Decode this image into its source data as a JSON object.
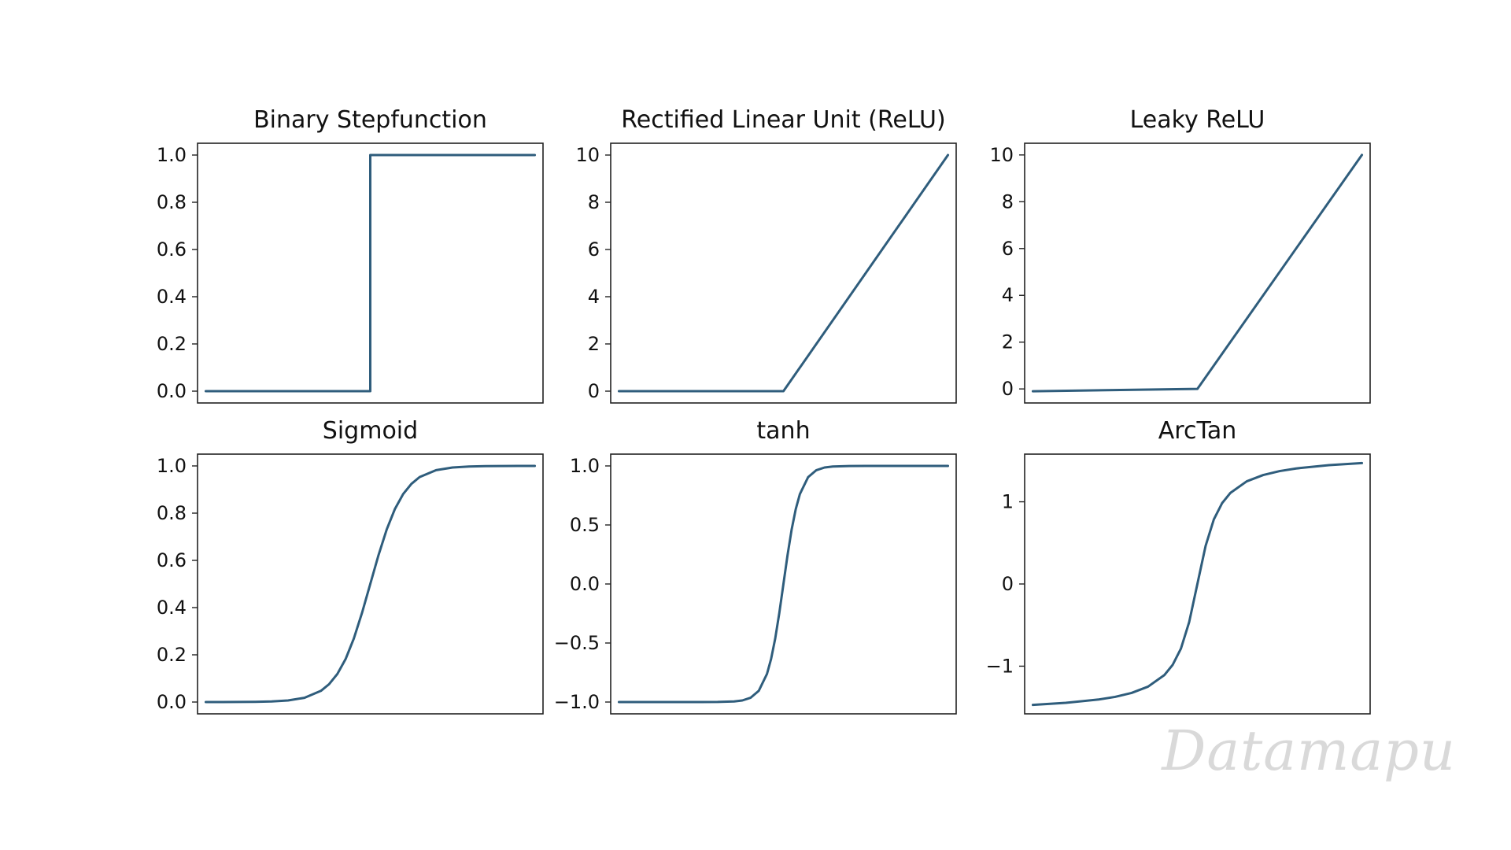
{
  "watermark": "Datamapu",
  "style": {
    "line_color": "#2f5d7c",
    "axis_color": "#222222",
    "text_color": "#111111"
  },
  "chart_data": [
    {
      "type": "line",
      "title": "Binary Stepfunction",
      "xlim": [
        -10.5,
        10.5
      ],
      "ylim": [
        -0.05,
        1.05
      ],
      "yticks": [
        0.0,
        0.2,
        0.4,
        0.6,
        0.8,
        1.0
      ],
      "ytick_labels": [
        "0.0",
        "0.2",
        "0.4",
        "0.6",
        "0.8",
        "1.0"
      ],
      "x": [
        -10,
        0,
        0,
        10
      ],
      "y": [
        0,
        0,
        1,
        1
      ]
    },
    {
      "type": "line",
      "title": "Rectified Linear Unit (ReLU)",
      "xlim": [
        -10.5,
        10.5
      ],
      "ylim": [
        -0.5,
        10.5
      ],
      "yticks": [
        0,
        2,
        4,
        6,
        8,
        10
      ],
      "ytick_labels": [
        "0",
        "2",
        "4",
        "6",
        "8",
        "10"
      ],
      "x": [
        -10,
        0,
        10
      ],
      "y": [
        0,
        0,
        10
      ]
    },
    {
      "type": "line",
      "title": "Leaky ReLU",
      "xlim": [
        -10.5,
        10.5
      ],
      "ylim": [
        -0.6,
        10.5
      ],
      "yticks": [
        0,
        2,
        4,
        6,
        8,
        10
      ],
      "ytick_labels": [
        "0",
        "2",
        "4",
        "6",
        "8",
        "10"
      ],
      "x": [
        -10,
        0,
        10
      ],
      "y": [
        -0.1,
        0,
        10
      ]
    },
    {
      "type": "line",
      "title": "Sigmoid",
      "xlim": [
        -10.5,
        10.5
      ],
      "ylim": [
        -0.05,
        1.05
      ],
      "yticks": [
        0.0,
        0.2,
        0.4,
        0.6,
        0.8,
        1.0
      ],
      "ytick_labels": [
        "0.0",
        "0.2",
        "0.4",
        "0.6",
        "0.8",
        "1.0"
      ],
      "x": [
        -10,
        -9,
        -8,
        -7,
        -6,
        -5,
        -4,
        -3,
        -2.5,
        -2,
        -1.5,
        -1,
        -0.5,
        0,
        0.5,
        1,
        1.5,
        2,
        2.5,
        3,
        4,
        5,
        6,
        7,
        8,
        9,
        10
      ],
      "y": [
        4.54e-05,
        0.000123,
        0.000335,
        0.000911,
        0.00247,
        0.00669,
        0.018,
        0.0474,
        0.0759,
        0.119,
        0.182,
        0.269,
        0.378,
        0.5,
        0.622,
        0.731,
        0.818,
        0.881,
        0.924,
        0.953,
        0.982,
        0.9933,
        0.9975,
        0.9991,
        0.99966,
        0.99988,
        0.99995
      ]
    },
    {
      "type": "line",
      "title": "tanh",
      "xlim": [
        -10.5,
        10.5
      ],
      "ylim": [
        -1.1,
        1.1
      ],
      "yticks": [
        -1.0,
        -0.5,
        0.0,
        0.5,
        1.0
      ],
      "ytick_labels": [
        "−1.0",
        "−0.5",
        "0.0",
        "0.5",
        "1.0"
      ],
      "x": [
        -10,
        -5,
        -4,
        -3,
        -2.5,
        -2,
        -1.5,
        -1,
        -0.75,
        -0.5,
        -0.25,
        0,
        0.25,
        0.5,
        0.75,
        1,
        1.5,
        2,
        2.5,
        3,
        4,
        5,
        10
      ],
      "y": [
        -1.0,
        -0.9999,
        -0.9993,
        -0.9951,
        -0.9866,
        -0.964,
        -0.9051,
        -0.7616,
        -0.6351,
        -0.4621,
        -0.2449,
        0,
        0.2449,
        0.4621,
        0.6351,
        0.7616,
        0.9051,
        0.964,
        0.9866,
        0.9951,
        0.9993,
        0.9999,
        1.0
      ]
    },
    {
      "type": "line",
      "title": "ArcTan",
      "xlim": [
        -10.5,
        10.5
      ],
      "ylim": [
        -1.58,
        1.58
      ],
      "yticks": [
        -1,
        0,
        1
      ],
      "ytick_labels": [
        "−1",
        "0",
        "1"
      ],
      "x": [
        -10,
        -8,
        -6,
        -5,
        -4,
        -3,
        -2,
        -1.5,
        -1,
        -0.5,
        0,
        0.5,
        1,
        1.5,
        2,
        3,
        4,
        5,
        6,
        8,
        10
      ],
      "y": [
        -1.4711,
        -1.4464,
        -1.4056,
        -1.3734,
        -1.3258,
        -1.249,
        -1.1071,
        -0.9828,
        -0.7854,
        -0.4636,
        0,
        0.4636,
        0.7854,
        0.9828,
        1.1071,
        1.249,
        1.3258,
        1.3734,
        1.4056,
        1.4464,
        1.4711
      ]
    }
  ]
}
